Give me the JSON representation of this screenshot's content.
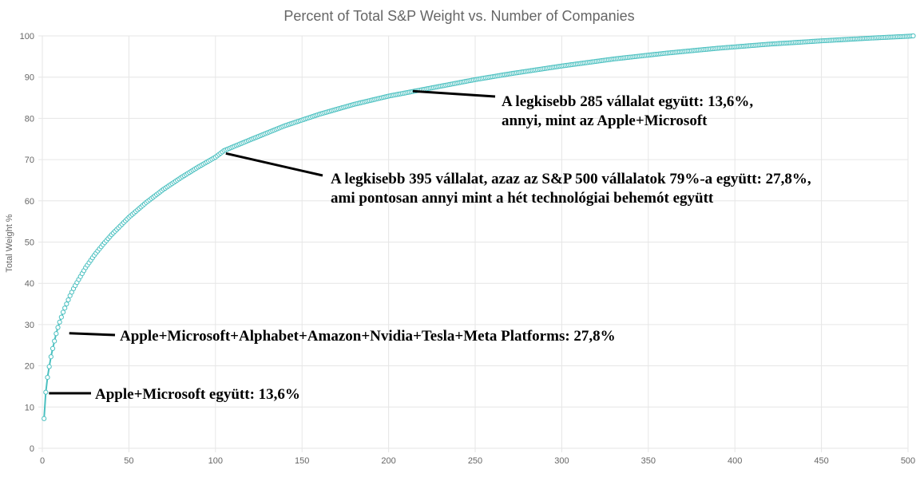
{
  "chart_data": {
    "type": "line",
    "title": "Percent of Total S&P Weight vs. Number of Companies",
    "ylabel": "Total Weight %",
    "xlim": [
      0,
      500
    ],
    "ylim": [
      0,
      100
    ],
    "x_ticks": [
      0,
      50,
      100,
      150,
      200,
      250,
      300,
      350,
      400,
      450,
      500
    ],
    "y_ticks": [
      0,
      10,
      20,
      30,
      40,
      50,
      60,
      70,
      80,
      90,
      100
    ],
    "grid": true,
    "line_color": "#4bc0c0",
    "series": [
      {
        "x": [
          1,
          2,
          3,
          4,
          5,
          6,
          7,
          8,
          9,
          10,
          12,
          14,
          16,
          18,
          20,
          25,
          30,
          35,
          40,
          50,
          60,
          70,
          80,
          90,
          100,
          105,
          120,
          140,
          160,
          180,
          200,
          215,
          230,
          250,
          270,
          300,
          330,
          360,
          390,
          420,
          450,
          480,
          500,
          503
        ],
        "y": [
          7.2,
          13.6,
          17.2,
          19.8,
          22.2,
          24.2,
          26.0,
          27.8,
          29.3,
          30.6,
          33.0,
          35.0,
          37.0,
          38.7,
          40.2,
          43.8,
          46.8,
          49.4,
          51.8,
          56.0,
          59.6,
          62.8,
          65.6,
          68.2,
          70.6,
          72.2,
          74.8,
          78.2,
          81.0,
          83.4,
          85.4,
          86.6,
          87.8,
          89.4,
          90.8,
          92.7,
          94.4,
          95.8,
          97.0,
          98.0,
          98.8,
          99.5,
          99.9,
          100.0
        ]
      }
    ],
    "annotations": [
      {
        "text_lines": [
          "A legkisebb 285 vállalat együtt: 13,6%,",
          "annyi, mint az Apple+Microsoft"
        ],
        "point": [
          214,
          86.6
        ]
      },
      {
        "text_lines": [
          "A legkisebb 395 vállalat, azaz az S&P 500 vállalatok 79%-a együtt: 27,8%,",
          "ami pontosan annyi mint a hét technológiai behemót együtt"
        ],
        "point": [
          106,
          71.5
        ]
      },
      {
        "text_lines": [
          "Apple+Microsoft+Alphabet+Amazon+Nvidia+Tesla+Meta Platforms: 27,8%"
        ],
        "point": [
          10,
          27.8
        ]
      },
      {
        "text_lines": [
          "Apple+Microsoft együtt: 13,6%"
        ],
        "point": [
          2,
          13.4
        ]
      }
    ]
  }
}
